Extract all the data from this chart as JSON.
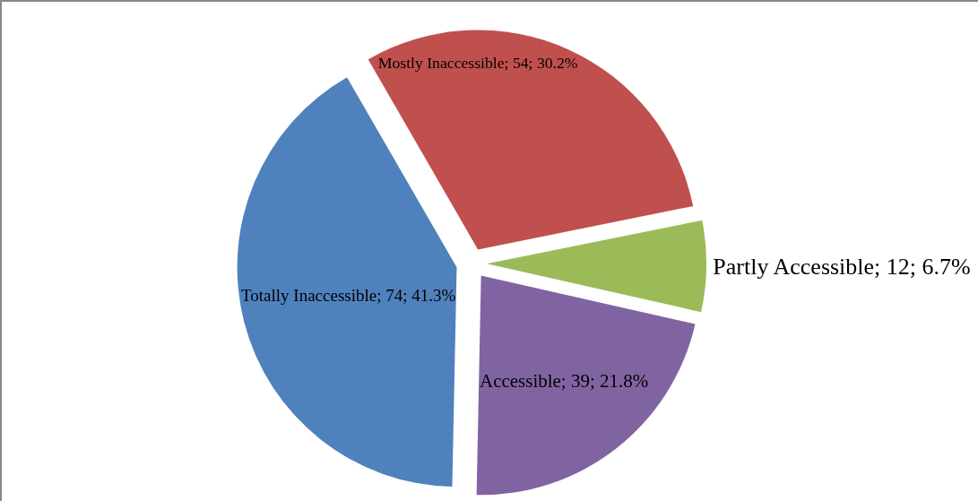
{
  "chart_data": {
    "type": "pie",
    "categories": [
      "Mostly Inaccessible",
      "Partly Accessible",
      "Accessible",
      "Totally Inaccessible"
    ],
    "values": [
      54,
      12,
      39,
      74
    ],
    "value_labels": [
      "54; 30.2%",
      "12; 6.7%",
      "39; 21.8%",
      "74; 41.3%"
    ],
    "colors": [
      "#c0504d",
      "#9bbb59",
      "#8064a2",
      "#4f81bd"
    ],
    "legend": false
  }
}
